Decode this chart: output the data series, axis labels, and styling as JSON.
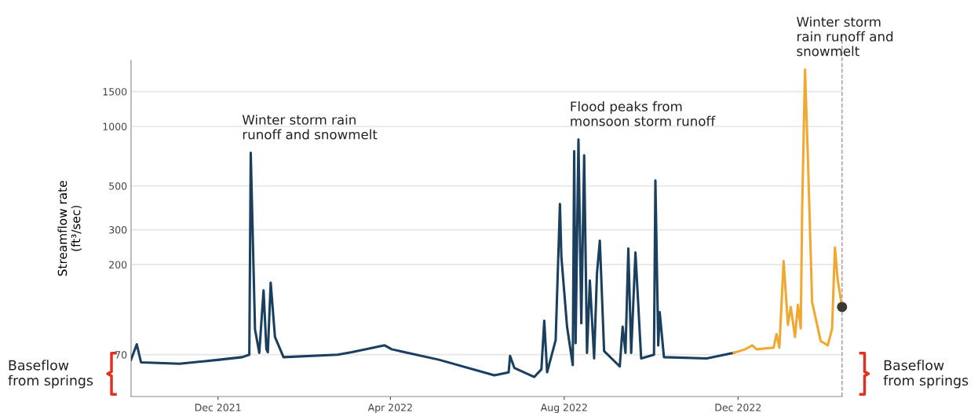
{
  "chart_data": {
    "type": "line",
    "ylabel": "Streamflow rate\n(ft³/sec)",
    "log": "y",
    "xlim": [
      "2021-10-01",
      "2023-02-12"
    ],
    "xticks": [
      {
        "value": "2021-12-01",
        "label": "Dec 2021"
      },
      {
        "value": "2022-04-01",
        "label": "Apr 2022"
      },
      {
        "value": "2022-08-01",
        "label": "Aug 2022"
      },
      {
        "value": "2022-12-01",
        "label": "Dec 2022"
      }
    ],
    "ylim": [
      43,
      2160
    ],
    "yticks": [
      70,
      200,
      300,
      500,
      1000,
      1500
    ],
    "grid": "y",
    "marker": "none",
    "line_style": "solid",
    "series": [
      {
        "color": "#1b3f5e",
        "x": [
          "2021-10-01",
          "2021-10-05",
          "2021-10-08",
          "2021-11-04",
          "2021-12-02",
          "2021-12-18",
          "2021-12-23",
          "2021-12-24",
          "2021-12-27",
          "2021-12-30",
          "2022-01-02",
          "2022-01-04",
          "2022-01-05",
          "2022-01-07",
          "2022-01-10",
          "2022-01-16",
          "2022-02-23",
          "2022-03-05",
          "2022-03-28",
          "2022-04-02",
          "2022-05-05",
          "2022-06-13",
          "2022-06-23",
          "2022-06-24",
          "2022-06-27",
          "2022-07-11",
          "2022-07-16",
          "2022-07-18",
          "2022-07-20",
          "2022-07-26",
          "2022-07-29",
          "2022-07-30",
          "2022-08-03",
          "2022-08-07",
          "2022-08-08",
          "2022-08-09",
          "2022-08-11",
          "2022-08-13",
          "2022-08-15",
          "2022-08-17",
          "2022-08-19",
          "2022-08-22",
          "2022-08-24",
          "2022-08-26",
          "2022-08-29",
          "2022-09-09",
          "2022-09-11",
          "2022-09-13",
          "2022-09-15",
          "2022-09-17",
          "2022-09-20",
          "2022-09-24",
          "2022-10-03",
          "2022-10-04",
          "2022-10-06",
          "2022-10-07",
          "2022-10-10",
          "2022-11-09",
          "2022-11-28"
        ],
        "values": [
          66,
          79,
          64,
          63,
          66,
          68,
          70,
          735,
          94,
          71.5,
          148,
          74.5,
          72,
          162,
          86,
          68,
          70,
          72,
          78,
          74.5,
          66,
          55,
          57,
          69,
          60,
          54,
          59,
          104,
          57,
          83,
          405,
          220,
          97,
          62,
          750,
          80,
          859,
          101,
          715,
          71.5,
          166,
          67,
          181,
          264,
          73,
          61,
          97,
          71.5,
          241,
          71.5,
          230,
          67,
          70,
          533,
          78,
          115,
          68,
          67,
          71.5
        ]
      },
      {
        "color": "#f0a830",
        "x": [
          "2022-11-28",
          "2022-12-06",
          "2022-12-11",
          "2022-12-14",
          "2022-12-26",
          "2022-12-28",
          "2022-12-30",
          "2023-01-02",
          "2023-01-05",
          "2023-01-07",
          "2023-01-10",
          "2023-01-12",
          "2023-01-14",
          "2023-01-15",
          "2023-01-17",
          "2023-01-19",
          "2023-01-22",
          "2023-01-28",
          "2023-02-02",
          "2023-02-05",
          "2023-02-07",
          "2023-02-09",
          "2023-02-12"
        ],
        "values": [
          71.5,
          74.5,
          78,
          74.5,
          76,
          89,
          76,
          208,
          99,
          122,
          86,
          125,
          95,
          380,
          1940,
          702,
          129,
          82,
          78,
          95,
          244,
          166,
          122
        ]
      },
      {
        "type": "scatter",
        "color": "#3b3a30",
        "marker": "circle",
        "x": [
          "2023-02-12"
        ],
        "values": [
          122
        ]
      }
    ],
    "ref_lines": [
      {
        "axis": "x",
        "value": "2023-02-12",
        "color": "#999999",
        "line_style": "dashed"
      }
    ],
    "annotations": [
      {
        "text": "Winter storm rain\nrunoff and snowmelt",
        "x": "2021-12-24",
        "y": 735
      },
      {
        "text": "Flood peaks from\nmonsoon storm runoff",
        "x": "2022-08-11",
        "y": 859
      },
      {
        "text": "Winter storm\nrain runoff and\nsnowmelt",
        "x": "2023-01-17",
        "y": 1940
      },
      "Baseflow\nfrom springs",
      "Baseflow\nfrom springs"
    ]
  }
}
